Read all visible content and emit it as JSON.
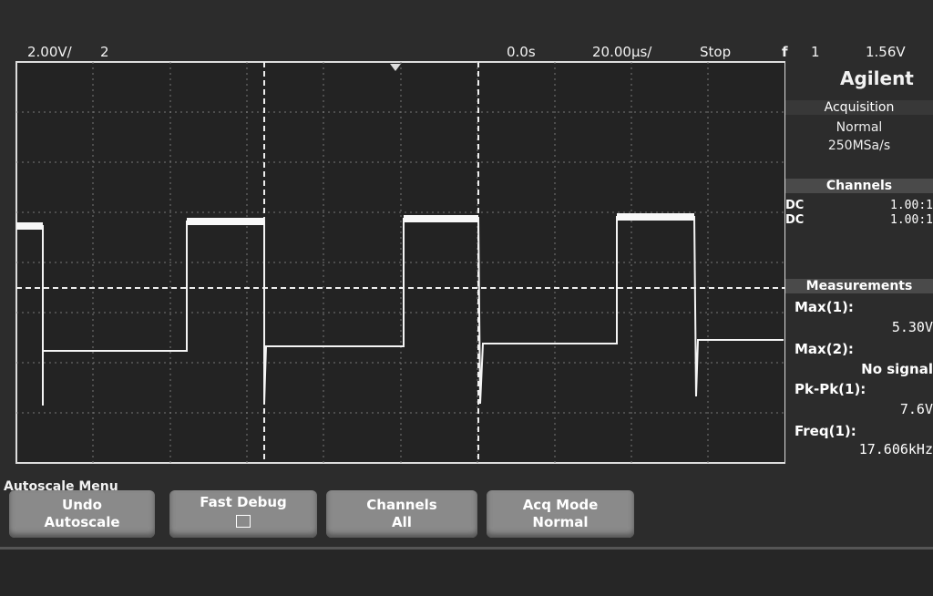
{
  "status_bar": {
    "channel_scale": "2.00V/",
    "channel": "2",
    "time_offset": "0.0s",
    "time_scale": "20.00µs/",
    "run_state": "Stop",
    "trigger_symbol": "f",
    "trigger_source": "1",
    "trigger_level": "1.56V"
  },
  "side_panel": {
    "brand": "Agilent",
    "acquisition": {
      "title": "Acquisition",
      "mode": "Normal",
      "sample_rate": "250MSa/s"
    },
    "channels": {
      "title": "Channels",
      "rows": [
        {
          "coupling": "DC",
          "probe": "1.00:1"
        },
        {
          "coupling": "DC",
          "probe": "1.00:1"
        }
      ]
    },
    "measurements": {
      "title": "Measurements",
      "items": [
        {
          "label": "Max(1):",
          "value": "5.30V"
        },
        {
          "label": "Max(2):",
          "value": "No signal"
        },
        {
          "label": "Pk-Pk(1):",
          "value": "7.6V"
        },
        {
          "label": "Freq(1):",
          "value": "17.606kHz"
        }
      ]
    }
  },
  "softkeys": {
    "menu_title": "Autoscale Menu",
    "keys": [
      {
        "line1": "Undo",
        "line2": "Autoscale"
      },
      {
        "line1": "Fast Debug"
      },
      {
        "line1": "Channels",
        "line2": "All"
      },
      {
        "line1": "Acq Mode",
        "line2": "Normal"
      }
    ]
  }
}
